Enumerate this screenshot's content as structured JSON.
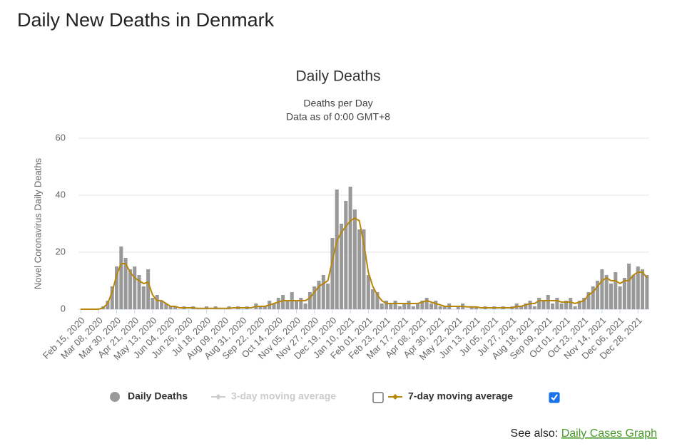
{
  "header": {
    "title": "Daily New Deaths in Denmark"
  },
  "chart_data": {
    "type": "bar",
    "title": "Daily Deaths",
    "subtitle": [
      "Deaths per Day",
      "Data as of 0:00 GMT+8"
    ],
    "y_label": "Novel Coronavirus Daily Deaths",
    "categories": [
      "Feb 15, 2020",
      null,
      null,
      null,
      "Mar 08, 2020",
      null,
      null,
      null,
      "Mar 30, 2020",
      null,
      null,
      null,
      "Apr 21, 2020",
      null,
      null,
      null,
      "May 13, 2020",
      null,
      null,
      null,
      "Jun 04, 2020",
      null,
      null,
      null,
      "Jun 26, 2020",
      null,
      null,
      null,
      "Jul 18, 2020",
      null,
      null,
      null,
      "Aug 09, 2020",
      null,
      null,
      null,
      "Aug 31, 2020",
      null,
      null,
      null,
      "Sep 22, 2020",
      null,
      null,
      null,
      "Oct 14, 2020",
      null,
      null,
      null,
      "Nov 05, 2020",
      null,
      null,
      null,
      "Nov 27, 2020",
      null,
      null,
      null,
      "Dec 19, 2020",
      null,
      null,
      null,
      "Jan 10, 2021",
      null,
      null,
      null,
      "Feb 01, 2021",
      null,
      null,
      null,
      "Feb 23, 2021",
      null,
      null,
      null,
      "Mar 17, 2021",
      null,
      null,
      null,
      "Apr 08, 2021",
      null,
      null,
      null,
      "Apr 30, 2021",
      null,
      null,
      null,
      "May 22, 2021",
      null,
      null,
      null,
      "Jun 13, 2021",
      null,
      null,
      null,
      "Jul 05, 2021",
      null,
      null,
      null,
      "Jul 27, 2021",
      null,
      null,
      null,
      "Aug 18, 2021",
      null,
      null,
      null,
      "Sep 09, 2021",
      null,
      null,
      null,
      "Oct 01, 2021",
      null,
      null,
      null,
      "Oct 23, 2021",
      null,
      null,
      null,
      "Nov 14, 2021",
      null,
      null,
      null,
      "Dec 06, 2021",
      null,
      null,
      null,
      "Dec 28, 2021",
      null,
      null
    ],
    "series": [
      {
        "name": "Daily Deaths",
        "type": "bar",
        "color": "#999999",
        "visible": true,
        "values": [
          0,
          0,
          0,
          0,
          0,
          1,
          3,
          8,
          15,
          22,
          18,
          14,
          15,
          12,
          8,
          14,
          4,
          5,
          3,
          2,
          1,
          1,
          0,
          1,
          0,
          1,
          0,
          0,
          1,
          0,
          1,
          0,
          0,
          1,
          0,
          1,
          0,
          1,
          0,
          2,
          1,
          1,
          3,
          2,
          4,
          5,
          3,
          6,
          3,
          4,
          2,
          6,
          8,
          10,
          12,
          9,
          25,
          42,
          30,
          38,
          43,
          35,
          28,
          28,
          12,
          7,
          6,
          2,
          3,
          2,
          3,
          1,
          2,
          3,
          1,
          2,
          3,
          4,
          2,
          3,
          1,
          1,
          2,
          0,
          1,
          2,
          0,
          1,
          1,
          0,
          1,
          0,
          1,
          0,
          1,
          0,
          1,
          2,
          1,
          2,
          3,
          1,
          4,
          3,
          5,
          2,
          4,
          2,
          3,
          4,
          1,
          3,
          4,
          6,
          8,
          10,
          14,
          12,
          9,
          13,
          8,
          11,
          16,
          12,
          15,
          14,
          12
        ]
      },
      {
        "name": "3-day moving average",
        "type": "line",
        "color": "#cccccc",
        "visible": false
      },
      {
        "name": "7-day moving average",
        "type": "line",
        "color": "#b8860b",
        "visible": true,
        "values": [
          0,
          0,
          0,
          0,
          0,
          0.5,
          2,
          6,
          12,
          16,
          16,
          13,
          11,
          10,
          9,
          9.5,
          5,
          3,
          3,
          2,
          1,
          1,
          0.5,
          0.5,
          0.5,
          0.5,
          0.3,
          0.3,
          0.3,
          0.3,
          0.3,
          0.3,
          0.3,
          0.3,
          0.5,
          0.5,
          0.5,
          0.5,
          0.5,
          1,
          1,
          1,
          1.5,
          2,
          2.5,
          3,
          3,
          3,
          3,
          3,
          3,
          4,
          6,
          8,
          9,
          10,
          17,
          24,
          27,
          29,
          31,
          32,
          31,
          23,
          13,
          8,
          5,
          3,
          2,
          2,
          2,
          2,
          2,
          2,
          2,
          2,
          2.5,
          3,
          2.5,
          2,
          1.5,
          1,
          1,
          1,
          1,
          1,
          0.8,
          0.8,
          0.8,
          0.5,
          0.5,
          0.5,
          0.5,
          0.5,
          0.5,
          0.5,
          0.5,
          1,
          1,
          1.5,
          2,
          2,
          3,
          3,
          3,
          3,
          3,
          2.5,
          2.5,
          2.5,
          2,
          2.5,
          3,
          5,
          6,
          8,
          10,
          11,
          10,
          10,
          9,
          10,
          10,
          12,
          13,
          13,
          11
        ]
      }
    ],
    "ylim": [
      0,
      60
    ],
    "yticks": [
      0,
      20,
      40,
      60
    ],
    "grid": true
  },
  "footer": {
    "see_also": "See also:",
    "link": "Daily Cases Graph"
  }
}
